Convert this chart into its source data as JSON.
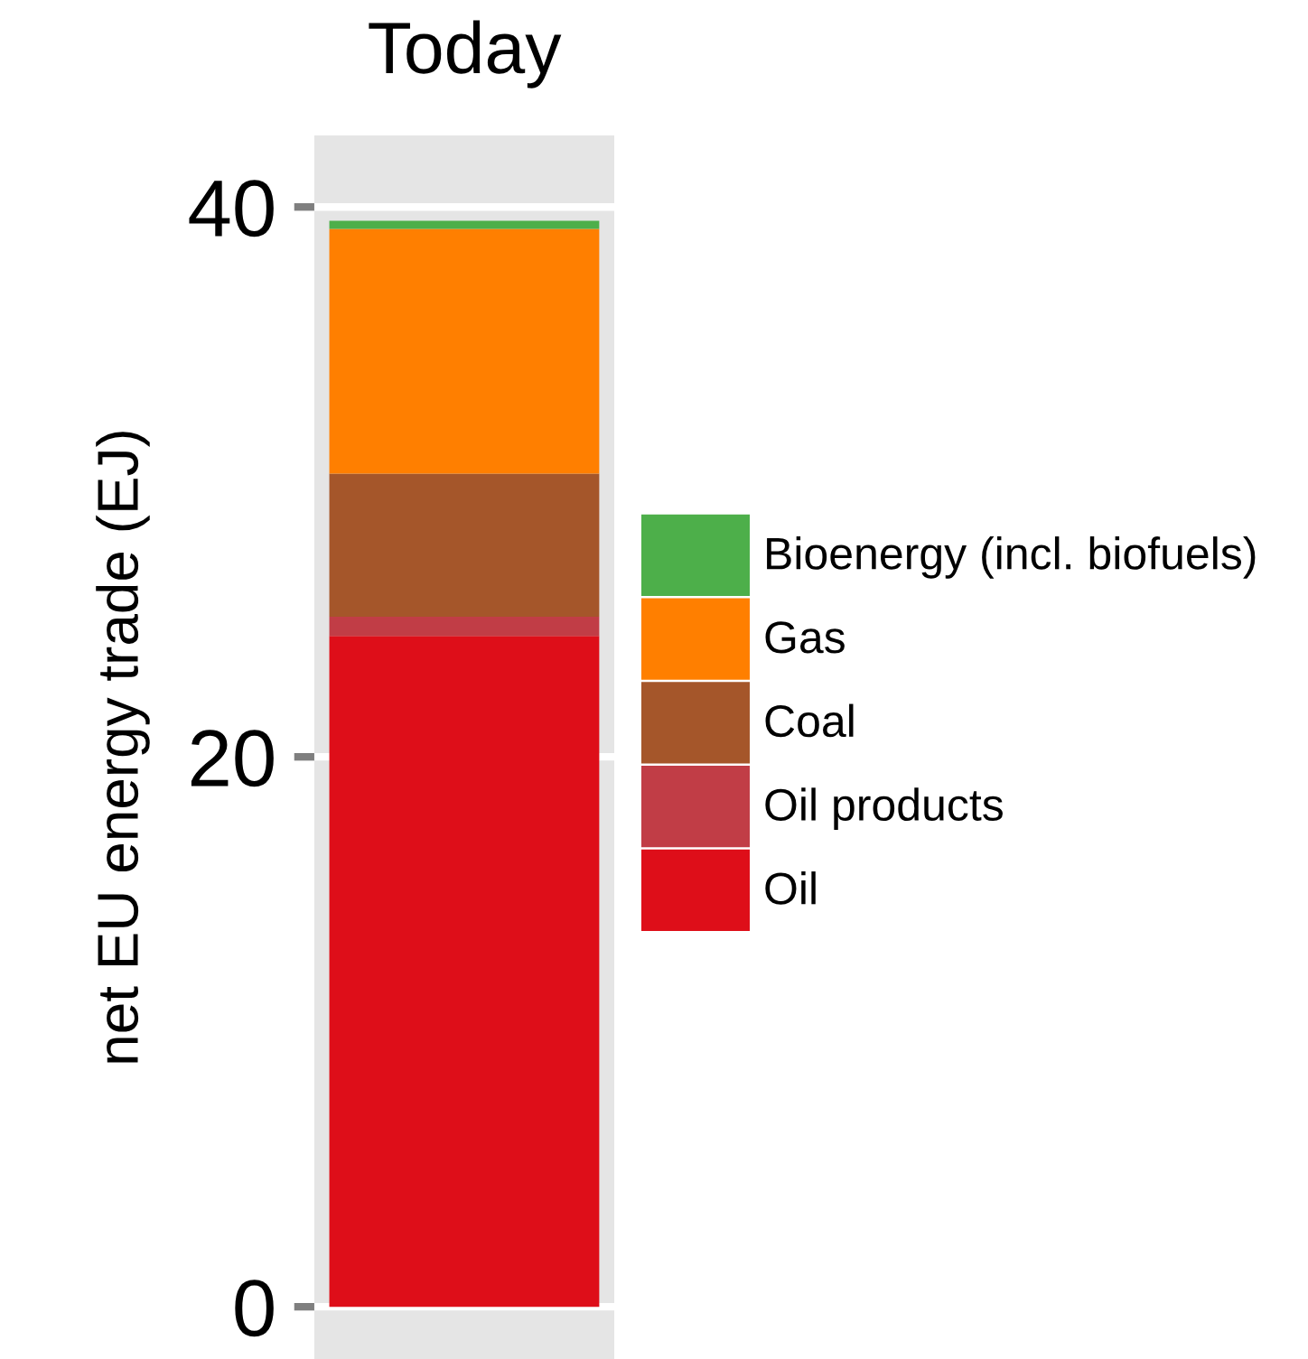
{
  "chart_data": {
    "type": "bar",
    "stacked": true,
    "title": "Today",
    "ylabel": "net EU energy trade (EJ)",
    "categories": [
      null
    ],
    "series": [
      {
        "name": "Oil",
        "color": "#de0e19",
        "values": [
          24.4
        ]
      },
      {
        "name": "Oil products",
        "color": "#c13d46",
        "values": [
          0.7
        ]
      },
      {
        "name": "Coal",
        "color": "#a5562a",
        "values": [
          5.2
        ]
      },
      {
        "name": "Gas",
        "color": "#ff7f00",
        "values": [
          8.9
        ]
      },
      {
        "name": "Bioenergy (incl. biofuels)",
        "color": "#4daf4a",
        "values": [
          0.3
        ]
      }
    ],
    "ylim": [
      -1.9,
      42.6
    ],
    "yticks": [
      0,
      20,
      40
    ],
    "grid": "y",
    "legend": "right"
  }
}
